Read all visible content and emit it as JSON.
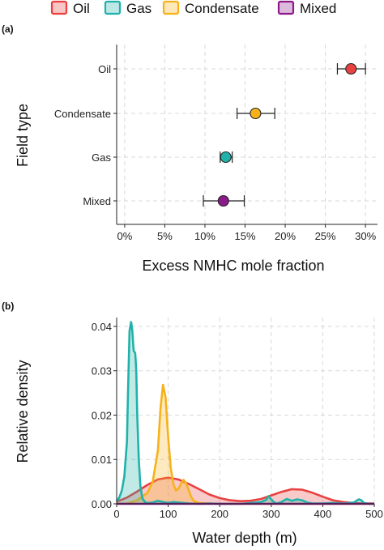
{
  "legend": {
    "items": [
      {
        "label": "Oil",
        "color": "#e8413f"
      },
      {
        "label": "Gas",
        "color": "#20b2aa"
      },
      {
        "label": "Condensate",
        "color": "#f7b21b"
      },
      {
        "label": "Mixed",
        "color": "#8b1a8b"
      }
    ]
  },
  "chart_data": [
    {
      "panel_label": "(a)",
      "type": "scatter",
      "orientation": "horizontal",
      "xlabel": "Excess NMHC mole fraction",
      "ylabel": "Field type",
      "xlim": [
        -0.01,
        0.315
      ],
      "xticks": [
        0,
        0.05,
        0.1,
        0.15,
        0.2,
        0.25,
        0.3
      ],
      "xtick_labels": [
        "0%",
        "5%",
        "10%",
        "15%",
        "20%",
        "25%",
        "30%"
      ],
      "categories": [
        "Oil",
        "Condensate",
        "Gas",
        "Mixed"
      ],
      "grid": true,
      "points": [
        {
          "category": "Oil",
          "value": 0.282,
          "lower": 0.265,
          "upper": 0.3,
          "color": "#e8413f"
        },
        {
          "category": "Condensate",
          "value": 0.163,
          "lower": 0.14,
          "upper": 0.187,
          "color": "#f7b21b"
        },
        {
          "category": "Gas",
          "value": 0.126,
          "lower": 0.119,
          "upper": 0.134,
          "color": "#20b2aa"
        },
        {
          "category": "Mixed",
          "value": 0.123,
          "lower": 0.098,
          "upper": 0.149,
          "color": "#8b1a8b"
        }
      ]
    },
    {
      "panel_label": "(b)",
      "type": "area",
      "xlabel": "Water depth (m)",
      "ylabel": "Relative density",
      "xlim": [
        0,
        500
      ],
      "ylim": [
        0,
        0.042
      ],
      "xticks": [
        0,
        100,
        200,
        300,
        400,
        500
      ],
      "xtick_labels": [
        "0",
        "100",
        "200",
        "300",
        "400",
        "500"
      ],
      "yticks": [
        0,
        0.01,
        0.02,
        0.03,
        0.04
      ],
      "ytick_labels": [
        "0.00",
        "0.01",
        "0.02",
        "0.03",
        "0.04"
      ],
      "grid": true,
      "series": [
        {
          "name": "Oil",
          "color": "#e8413f",
          "x": [
            0,
            20,
            40,
            60,
            80,
            100,
            120,
            140,
            160,
            180,
            200,
            220,
            240,
            260,
            280,
            300,
            320,
            340,
            360,
            380,
            400,
            420,
            440,
            460,
            480,
            500
          ],
          "y": [
            0.0005,
            0.0014,
            0.0028,
            0.0043,
            0.0055,
            0.0059,
            0.0055,
            0.0045,
            0.0033,
            0.0021,
            0.0013,
            0.0008,
            0.0006,
            0.0007,
            0.0011,
            0.0019,
            0.0027,
            0.0033,
            0.0032,
            0.0025,
            0.0016,
            0.0008,
            0.0004,
            0.0002,
            0.0001,
            0.0001
          ]
        },
        {
          "name": "Condensate",
          "color": "#f7b21b",
          "x": [
            0,
            20,
            40,
            60,
            70,
            80,
            85,
            90,
            95,
            100,
            105,
            110,
            115,
            120,
            125,
            130,
            135,
            140,
            145,
            150,
            160,
            180,
            200,
            250,
            300,
            350,
            400,
            500
          ],
          "y": [
            0.0,
            0.0001,
            0.0008,
            0.0025,
            0.005,
            0.012,
            0.0215,
            0.0268,
            0.024,
            0.015,
            0.008,
            0.0045,
            0.003,
            0.0034,
            0.0046,
            0.0054,
            0.0046,
            0.003,
            0.0015,
            0.0006,
            0.0002,
            0.0001,
            0.0,
            0.0,
            0.0,
            0.0,
            0.0,
            0.0
          ]
        },
        {
          "name": "Gas",
          "color": "#20b2aa",
          "x": [
            0,
            5,
            10,
            15,
            20,
            22,
            25,
            28,
            30,
            33,
            36,
            38,
            40,
            43,
            46,
            50,
            55,
            60,
            70,
            80,
            90,
            100,
            110,
            120,
            140,
            160,
            180,
            200,
            220,
            240,
            260,
            280,
            290,
            295,
            300,
            305,
            310,
            320,
            330,
            340,
            350,
            360,
            370,
            380,
            400,
            420,
            440,
            460,
            470,
            475,
            480,
            490,
            500
          ],
          "y": [
            0.0006,
            0.0014,
            0.003,
            0.0062,
            0.014,
            0.025,
            0.039,
            0.041,
            0.0395,
            0.0345,
            0.034,
            0.03,
            0.02,
            0.01,
            0.004,
            0.0012,
            0.0004,
            0.0002,
            0.0003,
            0.0007,
            0.0004,
            0.0002,
            0.0004,
            0.0003,
            0.0001,
            0.0,
            0.0001,
            0.0,
            0.0,
            0.0,
            0.0002,
            0.0004,
            0.0009,
            0.0017,
            0.001,
            0.0004,
            0.0001,
            0.0004,
            0.0011,
            0.0007,
            0.001,
            0.0008,
            0.0003,
            0.0001,
            0.0001,
            0.0002,
            0.0001,
            0.0003,
            0.001,
            0.0008,
            0.0002,
            0.0,
            0.0
          ]
        },
        {
          "name": "Mixed",
          "color": "#8b1a8b",
          "x": [
            0,
            100,
            200,
            300,
            400,
            500
          ],
          "y": [
            0,
            0,
            0,
            0,
            0,
            0
          ]
        }
      ]
    }
  ]
}
